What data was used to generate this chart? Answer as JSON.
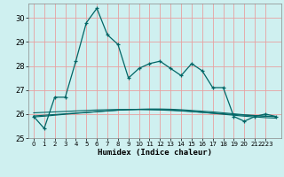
{
  "xlabel": "Humidex (Indice chaleur)",
  "bg_color": "#cff0f0",
  "grid_color": "#e8a0a0",
  "line_color": "#006666",
  "x": [
    0,
    1,
    2,
    3,
    4,
    5,
    6,
    7,
    8,
    9,
    10,
    11,
    12,
    13,
    14,
    15,
    16,
    17,
    18,
    19,
    20,
    21,
    22,
    23
  ],
  "y_main": [
    25.9,
    25.4,
    26.7,
    26.7,
    28.2,
    29.8,
    30.4,
    29.3,
    28.9,
    27.5,
    27.9,
    28.1,
    28.2,
    27.9,
    27.6,
    28.1,
    27.8,
    27.1,
    27.1,
    25.9,
    25.7,
    25.9,
    26.0,
    25.9
  ],
  "y_line1": [
    25.92,
    25.95,
    25.98,
    26.01,
    26.04,
    26.07,
    26.1,
    26.13,
    26.16,
    26.18,
    26.2,
    26.21,
    26.21,
    26.2,
    26.18,
    26.15,
    26.12,
    26.09,
    26.05,
    26.01,
    25.97,
    25.94,
    25.91,
    25.89
  ],
  "y_line2": [
    25.88,
    25.91,
    25.95,
    25.99,
    26.03,
    26.06,
    26.1,
    26.13,
    26.16,
    26.18,
    26.19,
    26.19,
    26.18,
    26.17,
    26.14,
    26.11,
    26.07,
    26.03,
    25.99,
    25.95,
    25.91,
    25.88,
    25.85,
    25.83
  ],
  "y_line3": [
    26.05,
    26.07,
    26.09,
    26.11,
    26.13,
    26.15,
    26.17,
    26.18,
    26.19,
    26.19,
    26.19,
    26.18,
    26.17,
    26.15,
    26.13,
    26.1,
    26.07,
    26.04,
    26.01,
    25.98,
    25.95,
    25.93,
    25.91,
    25.9
  ],
  "ylim": [
    25.0,
    30.6
  ],
  "yticks": [
    25,
    26,
    27,
    28,
    29,
    30
  ],
  "xlim": [
    -0.5,
    23.5
  ],
  "xtick_positions": [
    0,
    1,
    2,
    3,
    4,
    5,
    6,
    7,
    8,
    9,
    10,
    11,
    12,
    13,
    14,
    15,
    16,
    17,
    18,
    19,
    20,
    21,
    22
  ],
  "xtick_labels": [
    "0",
    "1",
    "2",
    "3",
    "4",
    "5",
    "6",
    "7",
    "8",
    "9",
    "10",
    "11",
    "12",
    "13",
    "14",
    "15",
    "16",
    "17",
    "18",
    "19",
    "20",
    "21",
    "2223"
  ]
}
